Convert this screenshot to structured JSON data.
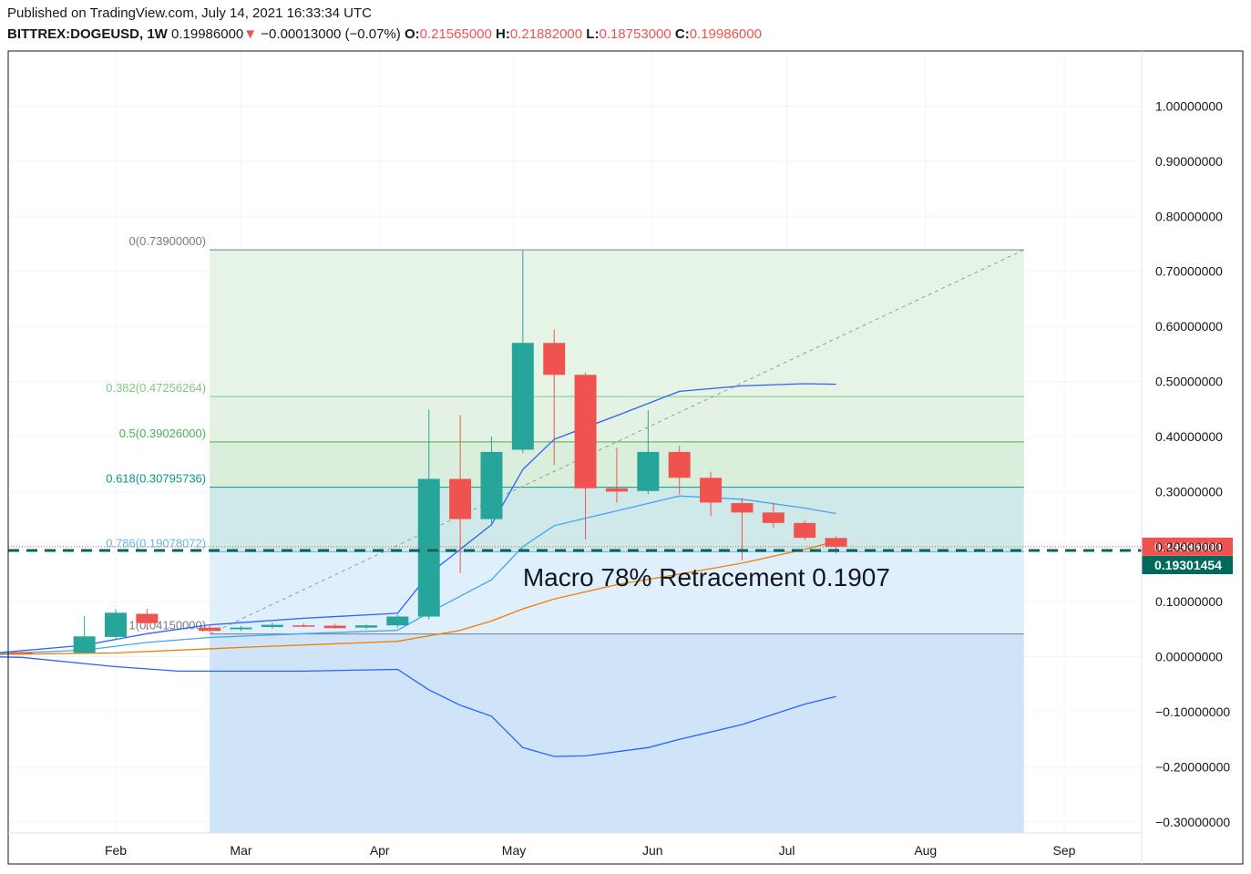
{
  "header": {
    "published": "Published on TradingView.com, July 14, 2021 16:33:34 UTC",
    "symbol": "BITTREX:DOGEUSD, 1W",
    "last": "0.19986000",
    "change_arrow": "▼",
    "change": "−0.00013000 (−0.07%)",
    "o_label": "O:",
    "o_value": "0.21565000",
    "h_label": "H:",
    "h_value": "0.21882000",
    "l_label": "L:",
    "l_value": "0.18753000",
    "c_label": "C:",
    "c_value": "0.19986000"
  },
  "colors": {
    "up": "#26a69a",
    "down": "#ef5350",
    "bb_blue": "#2962ff",
    "ema_orange": "#f57c00",
    "grid": "#f0f3fa",
    "dashed_green": "#00695c"
  },
  "chart_data": {
    "type": "candlestick",
    "title": "",
    "ylim": [
      -0.32,
      1.1
    ],
    "y_ticks": [
      1.0,
      0.9,
      0.8,
      0.7,
      0.6,
      0.5,
      0.4,
      0.3,
      0.2,
      0.1,
      0.0,
      -0.1,
      -0.2,
      -0.3
    ],
    "y_tick_labels": [
      "1.00000000",
      "0.90000000",
      "0.80000000",
      "0.70000000",
      "0.60000000",
      "0.50000000",
      "0.40000000",
      "0.30000000",
      "0.20000000",
      "0.10000000",
      "0.00000000",
      "−0.10000000",
      "−0.20000000",
      "−0.30000000"
    ],
    "x_ticks": [
      {
        "label": "Feb",
        "date": "2021-02-01"
      },
      {
        "label": "Mar",
        "date": "2021-03-01"
      },
      {
        "label": "Apr",
        "date": "2021-04-01"
      },
      {
        "label": "May",
        "date": "2021-05-01"
      },
      {
        "label": "Jun",
        "date": "2021-06-01"
      },
      {
        "label": "Jul",
        "date": "2021-07-01"
      },
      {
        "label": "Aug",
        "date": "2021-08-01"
      },
      {
        "label": "Sep",
        "date": "2021-09-01"
      }
    ],
    "candles": [
      {
        "date": "2021-01-04",
        "o": 0.0055,
        "h": 0.0098,
        "l": 0.0045,
        "c": 0.0082
      },
      {
        "date": "2021-01-11",
        "o": 0.0082,
        "h": 0.011,
        "l": 0.006,
        "c": 0.0058
      },
      {
        "date": "2021-01-25",
        "o": 0.0072,
        "h": 0.074,
        "l": 0.006,
        "c": 0.037
      },
      {
        "date": "2021-02-01",
        "o": 0.036,
        "h": 0.086,
        "l": 0.032,
        "c": 0.08
      },
      {
        "date": "2021-02-08",
        "o": 0.078,
        "h": 0.087,
        "l": 0.049,
        "c": 0.061
      },
      {
        "date": "2021-02-22",
        "o": 0.053,
        "h": 0.058,
        "l": 0.045,
        "c": 0.047
      },
      {
        "date": "2021-03-01",
        "o": 0.05,
        "h": 0.056,
        "l": 0.047,
        "c": 0.053
      },
      {
        "date": "2021-03-08",
        "o": 0.054,
        "h": 0.062,
        "l": 0.051,
        "c": 0.058
      },
      {
        "date": "2021-03-15",
        "o": 0.057,
        "h": 0.061,
        "l": 0.054,
        "c": 0.0565
      },
      {
        "date": "2021-03-22",
        "o": 0.0565,
        "h": 0.06,
        "l": 0.051,
        "c": 0.052
      },
      {
        "date": "2021-03-29",
        "o": 0.053,
        "h": 0.059,
        "l": 0.05,
        "c": 0.057
      },
      {
        "date": "2021-04-05",
        "o": 0.057,
        "h": 0.076,
        "l": 0.053,
        "c": 0.073
      },
      {
        "date": "2021-04-12",
        "o": 0.073,
        "h": 0.449,
        "l": 0.068,
        "c": 0.323
      },
      {
        "date": "2021-04-19",
        "o": 0.323,
        "h": 0.439,
        "l": 0.152,
        "c": 0.25
      },
      {
        "date": "2021-04-26",
        "o": 0.25,
        "h": 0.4,
        "l": 0.238,
        "c": 0.372
      },
      {
        "date": "2021-05-03",
        "o": 0.376,
        "h": 0.739,
        "l": 0.37,
        "c": 0.57
      },
      {
        "date": "2021-05-10",
        "o": 0.57,
        "h": 0.594,
        "l": 0.348,
        "c": 0.512
      },
      {
        "date": "2021-05-17",
        "o": 0.512,
        "h": 0.516,
        "l": 0.213,
        "c": 0.306
      },
      {
        "date": "2021-05-24",
        "o": 0.306,
        "h": 0.38,
        "l": 0.28,
        "c": 0.3
      },
      {
        "date": "2021-05-31",
        "o": 0.301,
        "h": 0.448,
        "l": 0.295,
        "c": 0.372
      },
      {
        "date": "2021-06-07",
        "o": 0.372,
        "h": 0.383,
        "l": 0.295,
        "c": 0.325
      },
      {
        "date": "2021-06-14",
        "o": 0.325,
        "h": 0.336,
        "l": 0.255,
        "c": 0.28
      },
      {
        "date": "2021-06-21",
        "o": 0.279,
        "h": 0.288,
        "l": 0.175,
        "c": 0.262
      },
      {
        "date": "2021-06-28",
        "o": 0.262,
        "h": 0.28,
        "l": 0.235,
        "c": 0.243
      },
      {
        "date": "2021-07-05",
        "o": 0.243,
        "h": 0.248,
        "l": 0.212,
        "c": 0.216
      },
      {
        "date": "2021-07-12",
        "o": 0.2157,
        "h": 0.2188,
        "l": 0.1875,
        "c": 0.1999
      }
    ],
    "bb_upper": [
      {
        "date": "2021-01-04",
        "v": 0.006
      },
      {
        "date": "2021-01-25",
        "v": 0.021
      },
      {
        "date": "2021-02-08",
        "v": 0.042
      },
      {
        "date": "2021-02-22",
        "v": 0.058
      },
      {
        "date": "2021-03-15",
        "v": 0.07
      },
      {
        "date": "2021-04-05",
        "v": 0.079
      },
      {
        "date": "2021-04-12",
        "v": 0.15
      },
      {
        "date": "2021-04-26",
        "v": 0.24
      },
      {
        "date": "2021-05-03",
        "v": 0.34
      },
      {
        "date": "2021-05-10",
        "v": 0.395
      },
      {
        "date": "2021-05-24",
        "v": 0.438
      },
      {
        "date": "2021-06-07",
        "v": 0.482
      },
      {
        "date": "2021-06-21",
        "v": 0.492
      },
      {
        "date": "2021-07-05",
        "v": 0.496
      },
      {
        "date": "2021-07-12",
        "v": 0.495
      }
    ],
    "bb_basis": [
      {
        "date": "2021-01-04",
        "v": 0.005
      },
      {
        "date": "2021-01-25",
        "v": 0.012
      },
      {
        "date": "2021-02-08",
        "v": 0.026
      },
      {
        "date": "2021-02-22",
        "v": 0.035
      },
      {
        "date": "2021-03-15",
        "v": 0.042
      },
      {
        "date": "2021-04-05",
        "v": 0.048
      },
      {
        "date": "2021-04-12",
        "v": 0.08
      },
      {
        "date": "2021-04-26",
        "v": 0.14
      },
      {
        "date": "2021-05-03",
        "v": 0.2
      },
      {
        "date": "2021-05-10",
        "v": 0.238
      },
      {
        "date": "2021-05-24",
        "v": 0.265
      },
      {
        "date": "2021-06-07",
        "v": 0.292
      },
      {
        "date": "2021-06-21",
        "v": 0.286
      },
      {
        "date": "2021-07-05",
        "v": 0.27
      },
      {
        "date": "2021-07-12",
        "v": 0.26
      }
    ],
    "bb_lower": [
      {
        "date": "2021-01-04",
        "v": 0.0
      },
      {
        "date": "2021-01-11",
        "v": -0.001
      },
      {
        "date": "2021-02-01",
        "v": -0.018
      },
      {
        "date": "2021-02-15",
        "v": -0.026
      },
      {
        "date": "2021-03-15",
        "v": -0.026
      },
      {
        "date": "2021-04-05",
        "v": -0.023
      },
      {
        "date": "2021-04-12",
        "v": -0.06
      },
      {
        "date": "2021-04-19",
        "v": -0.088
      },
      {
        "date": "2021-04-26",
        "v": -0.108
      },
      {
        "date": "2021-05-03",
        "v": -0.165
      },
      {
        "date": "2021-05-10",
        "v": -0.181
      },
      {
        "date": "2021-05-17",
        "v": -0.18
      },
      {
        "date": "2021-05-31",
        "v": -0.165
      },
      {
        "date": "2021-06-07",
        "v": -0.15
      },
      {
        "date": "2021-06-21",
        "v": -0.123
      },
      {
        "date": "2021-07-05",
        "v": -0.086
      },
      {
        "date": "2021-07-12",
        "v": -0.072
      }
    ],
    "ema": [
      {
        "date": "2021-01-04",
        "v": 0.004
      },
      {
        "date": "2021-02-01",
        "v": 0.007
      },
      {
        "date": "2021-03-01",
        "v": 0.017
      },
      {
        "date": "2021-04-05",
        "v": 0.028
      },
      {
        "date": "2021-04-19",
        "v": 0.048
      },
      {
        "date": "2021-04-26",
        "v": 0.065
      },
      {
        "date": "2021-05-03",
        "v": 0.087
      },
      {
        "date": "2021-05-10",
        "v": 0.105
      },
      {
        "date": "2021-05-24",
        "v": 0.131
      },
      {
        "date": "2021-06-07",
        "v": 0.15
      },
      {
        "date": "2021-06-21",
        "v": 0.17
      },
      {
        "date": "2021-07-05",
        "v": 0.195
      },
      {
        "date": "2021-07-12",
        "v": 0.21
      }
    ],
    "fib": {
      "start_date": "2021-02-22",
      "end_date": "2021-08-23",
      "trend_from": {
        "date": "2021-02-22",
        "v": 0.0415
      },
      "trend_to": {
        "date": "2021-08-23",
        "v": 0.739
      },
      "levels": [
        {
          "label": "0(0.73900000)",
          "v": 0.739,
          "color": "#787b86",
          "fill": "#e6f4e6"
        },
        {
          "label": "0.382(0.47256264)",
          "v": 0.47256264,
          "color": "#81c784",
          "fill": "#e3f2e3"
        },
        {
          "label": "0.5(0.39026000)",
          "v": 0.39026,
          "color": "#4caf50",
          "fill": "#d9efdc"
        },
        {
          "label": "0.618(0.30795736)",
          "v": 0.30795736,
          "color": "#089981",
          "fill": "#cfe9e9"
        },
        {
          "label": "0.786(0.19078072)",
          "v": 0.19078072,
          "color": "#64b5f6",
          "fill": "#e0effc"
        },
        {
          "label": "1(0.04150000)",
          "v": 0.0415,
          "color": "#787b86",
          "fill": "#e2e3e6"
        }
      ],
      "below_fill": "#cfe4f8",
      "below_bottom": -0.32
    },
    "annotation": {
      "text": "Macro 78% Retracement 0.1907",
      "date": "2021-05-03",
      "v": 0.145
    },
    "last_price": {
      "v": 0.19986,
      "label": "0.19986000",
      "color": "#ef5350"
    },
    "dashed_level": {
      "v": 0.19301454,
      "label": "0.19301454",
      "color": "#00695c"
    }
  }
}
